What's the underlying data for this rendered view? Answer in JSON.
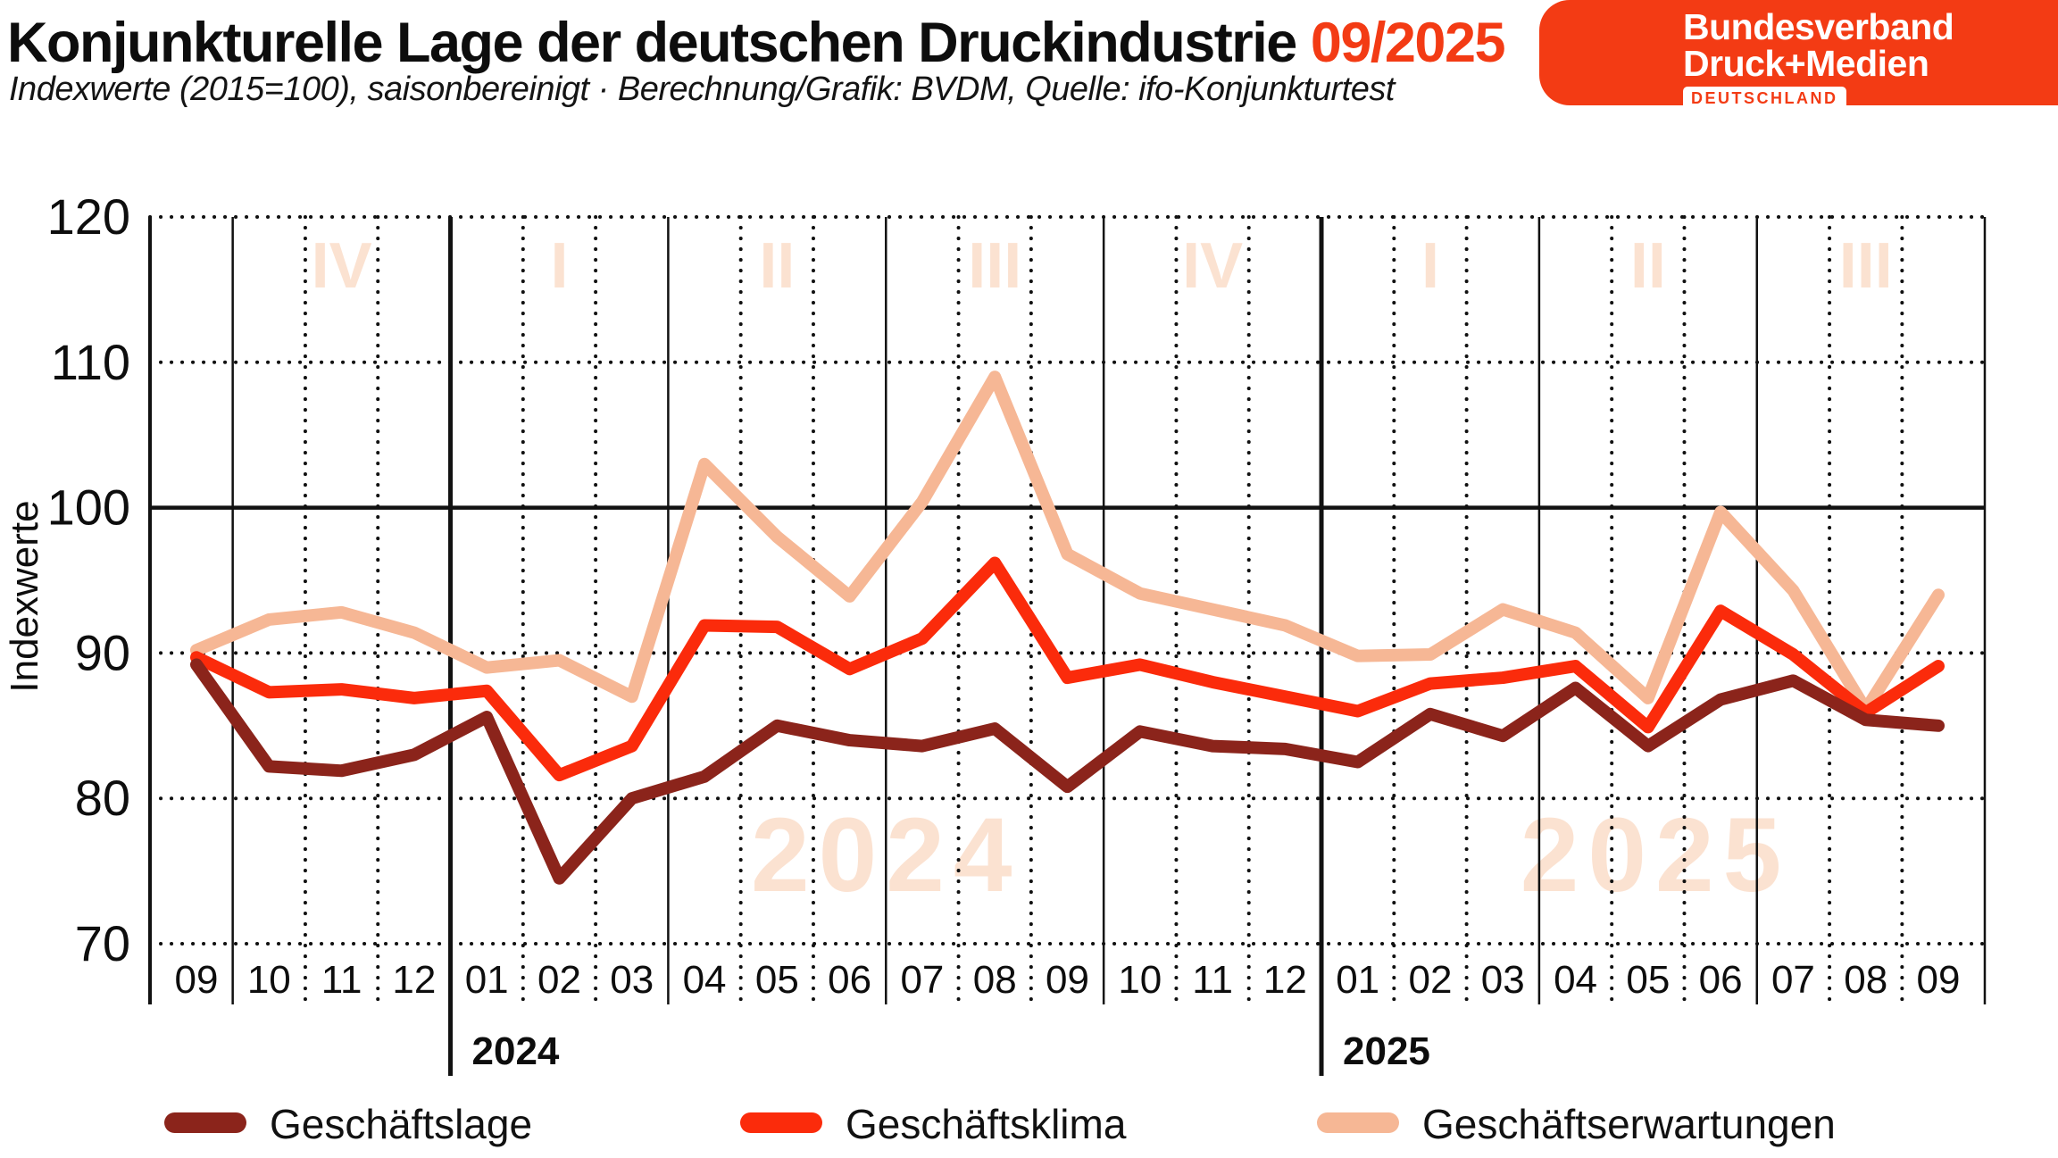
{
  "header": {
    "title": "Konjunkturelle Lage der deutschen Druckindustrie",
    "title_accent": "09/2025",
    "subtitle": "Indexwerte (2015=100), saisonbereinigt · Berechnung/Grafik: BVDM, Quelle: ifo-Konjunkturtest",
    "logo": {
      "line1": "Bundesverband",
      "line2": "Druck+Medien",
      "badge": "DEUTSCHLAND"
    }
  },
  "colors": {
    "accent": "#F33B14",
    "grid": "#111111",
    "faint_peach": "#FBE2D1",
    "lage": "#8B241B",
    "klima": "#FB2B0B",
    "erwartungen": "#F6B795"
  },
  "chart_data": {
    "type": "line",
    "title": "Konjunkturelle Lage der deutschen Druckindustrie 09/2025",
    "ylabel": "Indexwerte",
    "ylim": [
      70,
      120
    ],
    "yticks": [
      70,
      80,
      90,
      100,
      110,
      120
    ],
    "solid_y": 100,
    "grid": "dotted",
    "legend_position": "bottom",
    "x_labels": [
      "09",
      "10",
      "11",
      "12",
      "01",
      "02",
      "03",
      "04",
      "05",
      "06",
      "07",
      "08",
      "09",
      "10",
      "11",
      "12",
      "01",
      "02",
      "03",
      "04",
      "05",
      "06",
      "07",
      "08",
      "09"
    ],
    "year_dividers": [
      {
        "label": "2024",
        "index": 3.5
      },
      {
        "label": "2025",
        "index": 15.5
      }
    ],
    "quarter_dividers": [
      0.5,
      6.5,
      9.5,
      12.5,
      18.5,
      21.5
    ],
    "quarter_labels": [
      {
        "label": "IV",
        "center_index": 2
      },
      {
        "label": "I",
        "center_index": 5
      },
      {
        "label": "II",
        "center_index": 8
      },
      {
        "label": "III",
        "center_index": 11
      },
      {
        "label": "IV",
        "center_index": 14
      },
      {
        "label": "I",
        "center_index": 17
      },
      {
        "label": "II",
        "center_index": 20
      },
      {
        "label": "III",
        "center_index": 23
      }
    ],
    "watermarks": [
      {
        "text": "2024",
        "center_index": 9.5
      },
      {
        "text": "2025",
        "center_index": 20.1
      }
    ],
    "series": [
      {
        "name": "Geschäftslage",
        "color_key": "lage",
        "values": [
          89.2,
          82.2,
          81.9,
          83.0,
          85.6,
          74.5,
          80.0,
          81.5,
          85.0,
          84.0,
          83.6,
          84.8,
          80.8,
          84.6,
          83.6,
          83.4,
          82.5,
          85.8,
          84.3,
          87.6,
          83.6,
          86.8,
          88.1,
          85.4,
          85.0
        ]
      },
      {
        "name": "Geschäftsklima",
        "color_key": "klima",
        "values": [
          89.7,
          87.3,
          87.5,
          86.9,
          87.4,
          81.6,
          83.6,
          91.9,
          91.8,
          88.9,
          91.0,
          96.2,
          88.3,
          89.2,
          88.0,
          87.0,
          86.0,
          87.9,
          88.3,
          89.1,
          84.9,
          92.9,
          89.9,
          85.9,
          89.1
        ]
      },
      {
        "name": "Geschäftserwartungen",
        "color_key": "erwartungen",
        "values": [
          90.2,
          92.3,
          92.8,
          91.4,
          89.0,
          89.5,
          87.0,
          103.0,
          98.0,
          93.9,
          100.4,
          109.0,
          96.8,
          94.1,
          93.0,
          91.9,
          89.8,
          89.9,
          93.0,
          91.4,
          86.9,
          99.7,
          94.3,
          86.1,
          94.0
        ]
      }
    ]
  }
}
